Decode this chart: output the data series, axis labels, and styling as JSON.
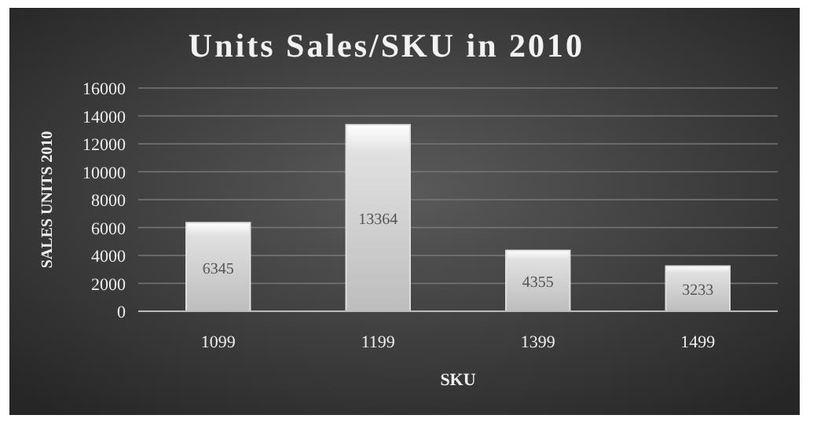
{
  "chart_data": {
    "type": "bar",
    "title": "Units Sales/SKU  in 2010",
    "xlabel": "SKU",
    "ylabel": "SALES UNITS 2010",
    "categories": [
      "1099",
      "1199",
      "1399",
      "1499"
    ],
    "values": [
      6345,
      13364,
      4355,
      3233
    ],
    "color": "#e0e0e0",
    "data_labels": true,
    "ylim": [
      0,
      16000
    ],
    "yticks": [
      0,
      2000,
      4000,
      6000,
      8000,
      10000,
      12000,
      14000,
      16000
    ],
    "grid": "y"
  }
}
